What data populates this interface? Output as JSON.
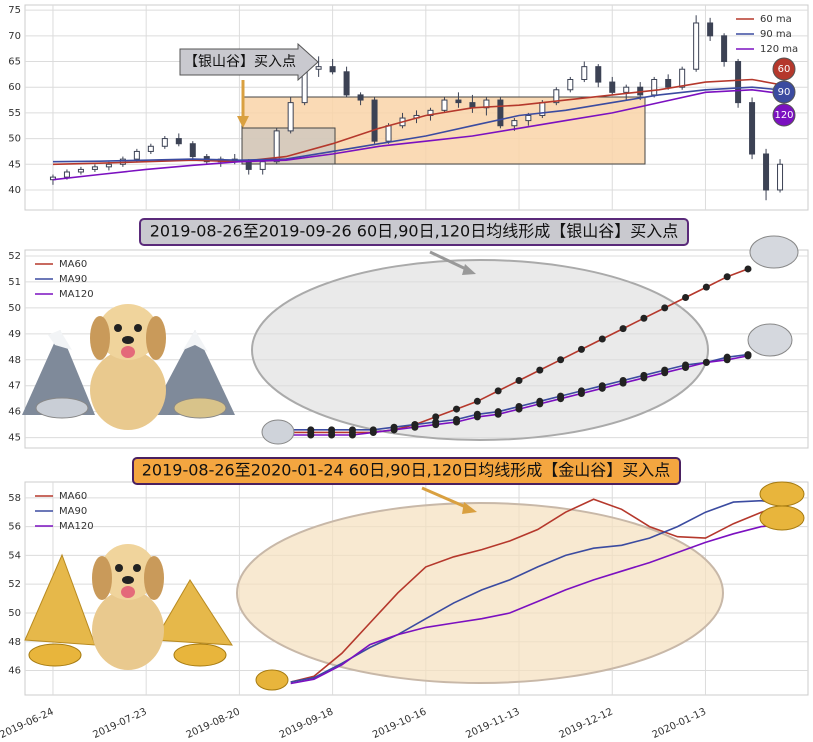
{
  "chart_data": [
    {
      "type": "candlestick",
      "annotation": "【银山谷】买入点",
      "badges": [
        "60",
        "90",
        "120"
      ],
      "color": "#3c4254",
      "x": [
        0,
        3,
        6,
        9,
        12,
        15,
        18,
        21,
        24,
        27,
        30,
        33,
        36,
        39,
        42,
        45,
        48,
        51,
        54,
        57,
        60,
        63,
        66,
        69,
        72,
        75,
        78,
        81,
        84,
        87,
        90,
        93,
        96,
        99,
        102,
        105,
        108,
        111,
        114,
        117,
        120,
        123,
        126,
        129,
        132,
        135,
        138,
        141,
        144,
        147,
        150,
        153,
        156
      ],
      "open": [
        42,
        42.5,
        43.5,
        44,
        44.5,
        45,
        46,
        47.5,
        48.5,
        50,
        49,
        46.5,
        45.5,
        46,
        45.5,
        44,
        45.5,
        51.5,
        57,
        63.5,
        64,
        63,
        58.5,
        57.5,
        49.5,
        52.5,
        54,
        54.5,
        55.5,
        57.5,
        57,
        56,
        57.5,
        52.5,
        53.5,
        54.5,
        57,
        59.5,
        61.5,
        64,
        61,
        59,
        60,
        58.5,
        61.5,
        60,
        63.5,
        72.5,
        70,
        65,
        57,
        47,
        40
      ],
      "high": [
        43,
        44,
        44.5,
        45,
        45.5,
        46.5,
        48,
        49,
        50.5,
        51,
        49.5,
        47,
        46.5,
        47,
        46,
        46,
        52,
        58,
        65,
        66,
        65.5,
        64,
        59,
        58,
        53,
        55,
        55.5,
        56,
        58,
        59,
        58.5,
        58,
        58,
        54,
        55,
        57.5,
        60,
        62,
        65,
        64.5,
        62,
        60.5,
        61,
        62,
        62.5,
        64,
        74,
        73.5,
        70.5,
        65.5,
        58,
        48,
        46
      ],
      "low": [
        41,
        42,
        43,
        43.5,
        43.8,
        44.5,
        45.5,
        47,
        48,
        48.5,
        46,
        45,
        44.5,
        45,
        43,
        43,
        45,
        51,
        56.5,
        62,
        62.5,
        58,
        56.5,
        49,
        49,
        52,
        53,
        53.5,
        55,
        56,
        55,
        54.5,
        52,
        51.5,
        52.5,
        54,
        56.5,
        59,
        61,
        60,
        58.5,
        57.5,
        57.5,
        58,
        59.5,
        59.5,
        63,
        69,
        64,
        56,
        46,
        38,
        39.5
      ],
      "close": [
        42.5,
        43.5,
        44,
        44.5,
        45,
        46,
        47.5,
        48.5,
        50,
        49,
        46.5,
        45.5,
        46,
        45.5,
        44,
        45.5,
        51.5,
        57,
        63.5,
        64,
        63,
        58.5,
        57.5,
        49.5,
        52.5,
        54,
        54.5,
        55.5,
        57.5,
        57,
        56,
        57.5,
        52.5,
        53.5,
        54.5,
        57,
        59.5,
        61.5,
        64,
        61,
        59,
        60,
        58.5,
        61.5,
        60,
        63.5,
        72.5,
        70,
        65,
        57,
        47,
        40,
        45
      ],
      "series": [
        {
          "name": "60 ma",
          "color": "#b5382c",
          "x": [
            0,
            10,
            20,
            30,
            40,
            50,
            60,
            70,
            80,
            90,
            100,
            110,
            120,
            130,
            140,
            150,
            156
          ],
          "values": [
            45,
            45.2,
            45.5,
            45.8,
            45.5,
            46.5,
            49,
            52,
            54.5,
            56,
            56.5,
            57.5,
            58.5,
            59.5,
            61,
            61.5,
            60.5
          ]
        },
        {
          "name": "90 ma",
          "color": "#3b4ba0",
          "x": [
            0,
            10,
            20,
            30,
            40,
            50,
            60,
            70,
            80,
            90,
            100,
            110,
            120,
            130,
            140,
            150,
            156
          ],
          "values": [
            45.5,
            45.6,
            45.8,
            46,
            45.8,
            46,
            47.5,
            49,
            50.5,
            52.5,
            54.5,
            55.5,
            57,
            58.5,
            59.5,
            60,
            59.5
          ]
        },
        {
          "name": "120 ma",
          "color": "#7b10c0",
          "x": [
            0,
            10,
            20,
            30,
            40,
            50,
            60,
            70,
            80,
            90,
            100,
            110,
            120,
            130,
            140,
            150,
            156
          ],
          "values": [
            42,
            43,
            44,
            44.8,
            45.5,
            45.8,
            47,
            48.5,
            49.5,
            50.5,
            52,
            53.5,
            55,
            57,
            59,
            59.5,
            58.8
          ]
        }
      ],
      "xlim": [
        -6,
        162
      ],
      "ylim": [
        36.1,
        76
      ],
      "yticks": [
        40,
        45,
        50,
        55,
        60,
        65,
        70,
        75
      ],
      "grid": true,
      "legend": "upper right"
    },
    {
      "type": "line",
      "title": "2019-08-26至2019-09-26 60日,90日,120日均线形成【银山谷】买入点",
      "markers": true,
      "series": [
        {
          "name": "MA60",
          "color": "#b5382c",
          "values": [
            45.2,
            45.2,
            45.2,
            45.2,
            45.2,
            45.3,
            45.5,
            45.8,
            46.1,
            46.4,
            46.8,
            47.2,
            47.6,
            48.0,
            48.4,
            48.8,
            49.2,
            49.6,
            50.0,
            50.4,
            50.8,
            51.2,
            51.5
          ]
        },
        {
          "name": "MA90",
          "color": "#3b4ba0",
          "values": [
            45.3,
            45.3,
            45.3,
            45.3,
            45.3,
            45.4,
            45.5,
            45.6,
            45.7,
            45.9,
            46.0,
            46.2,
            46.4,
            46.6,
            46.8,
            47.0,
            47.2,
            47.4,
            47.6,
            47.8,
            47.9,
            48.1,
            48.2
          ]
        },
        {
          "name": "MA120",
          "color": "#7b10c0",
          "values": [
            45.1,
            45.1,
            45.1,
            45.1,
            45.2,
            45.3,
            45.4,
            45.5,
            45.6,
            45.8,
            45.9,
            46.1,
            46.3,
            46.5,
            46.7,
            46.9,
            47.1,
            47.3,
            47.5,
            47.7,
            47.9,
            48.0,
            48.15
          ]
        }
      ],
      "ylim": [
        44.6,
        52.23
      ],
      "yticks": [
        45,
        46,
        47,
        48,
        49,
        50,
        51,
        52
      ],
      "grid": true,
      "legend": "upper left"
    },
    {
      "type": "line",
      "title": "2019-08-26至2020-01-24 60日,90日,120日均线形成【金山谷】买入点",
      "x": [
        51,
        56,
        62,
        68,
        74,
        80,
        86,
        92,
        98,
        104,
        110,
        116,
        122,
        128,
        134,
        140,
        146,
        152,
        158
      ],
      "series": [
        {
          "name": "MA60",
          "color": "#b5382c",
          "values": [
            45.2,
            45.6,
            47.2,
            49.3,
            51.4,
            53.2,
            53.9,
            54.4,
            55.0,
            55.8,
            57.0,
            57.9,
            57.2,
            56.0,
            55.3,
            55.2,
            56.2,
            57.0,
            57.6
          ]
        },
        {
          "name": "MA90",
          "color": "#3b4ba0",
          "values": [
            45.2,
            45.5,
            46.5,
            47.6,
            48.5,
            49.6,
            50.7,
            51.6,
            52.3,
            53.2,
            54.0,
            54.5,
            54.7,
            55.2,
            56.0,
            57.0,
            57.7,
            57.8,
            57.5
          ]
        },
        {
          "name": "MA120",
          "color": "#7b10c0",
          "values": [
            45.1,
            45.4,
            46.4,
            47.8,
            48.5,
            49.0,
            49.3,
            49.6,
            50.0,
            50.8,
            51.6,
            52.3,
            52.9,
            53.5,
            54.2,
            54.9,
            55.5,
            56.0,
            56.2
          ]
        }
      ],
      "xlim": [
        -6,
        162
      ],
      "xticks": [
        {
          "value": 0,
          "label": "2019-06-24"
        },
        {
          "value": 20,
          "label": "2019-07-23"
        },
        {
          "value": 40,
          "label": "2019-08-20"
        },
        {
          "value": 60,
          "label": "2019-09-18"
        },
        {
          "value": 80,
          "label": "2019-10-16"
        },
        {
          "value": 100,
          "label": "2019-11-13"
        },
        {
          "value": 120,
          "label": "2019-12-12"
        },
        {
          "value": 140,
          "label": "2020-01-13"
        }
      ],
      "ylim": [
        44.3,
        59.1
      ],
      "yticks": [
        46,
        48,
        50,
        52,
        54,
        56,
        58
      ],
      "grid": true,
      "legend": "upper left"
    }
  ]
}
